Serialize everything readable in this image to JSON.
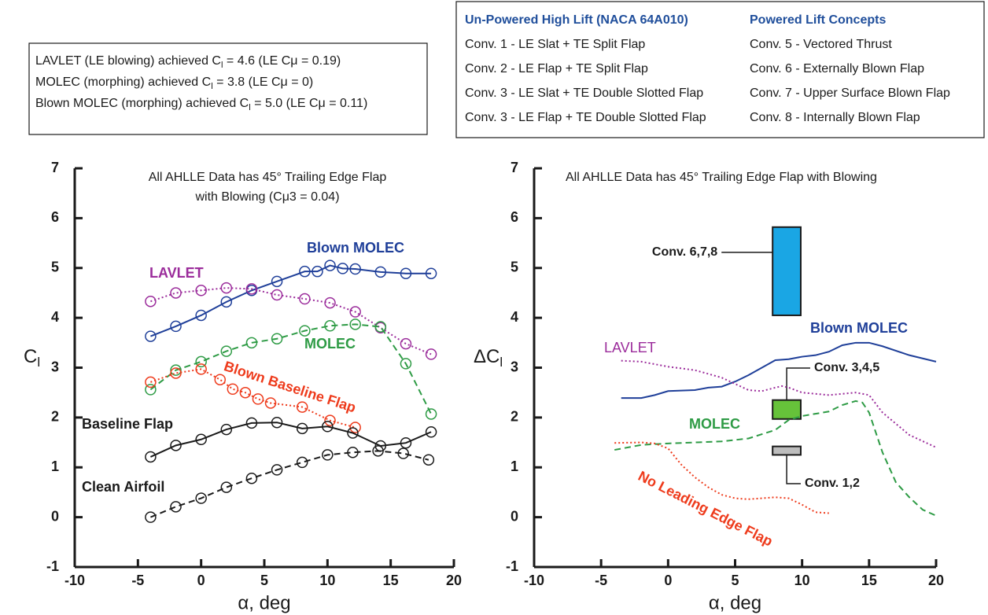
{
  "notes": {
    "lines": [
      [
        "LAVLET (LE blowing) achieved C",
        "l",
        " = 4.6 (LE Cμ = 0.19)"
      ],
      [
        "MOLEC (morphing) achieved C",
        "l",
        " = 3.8 (LE Cμ = 0)"
      ],
      [
        "Blown MOLEC (morphing) achieved C",
        "l",
        " = 5.0 (LE Cμ = 0.11)"
      ]
    ]
  },
  "configurations": {
    "columns": [
      {
        "heading": "Un-Powered High Lift (NACA 64A010)",
        "items": [
          "Conv. 1 - LE Slat + TE Split Flap",
          "Conv. 2 - LE Flap + TE Split Flap",
          "Conv. 3 - LE Slat + TE Double Slotted Flap",
          "Conv. 3 - LE Flap + TE Double Slotted Flap"
        ]
      },
      {
        "heading": "Powered Lift Concepts",
        "items": [
          "Conv. 5 - Vectored Thrust",
          "Conv. 6 - Externally Blown Flap",
          "Conv. 7 - Upper Surface Blown Flap",
          "Conv. 8 - Internally Blown Flap"
        ]
      }
    ]
  },
  "chart_data": [
    {
      "type": "line",
      "markers": true,
      "grid": false,
      "annotation": [
        "All AHLLE Data has 45° Trailing Edge Flap",
        "with Blowing (Cμ3 = 0.04)"
      ],
      "xlabel": "α, deg",
      "ylabel": [
        "C",
        "l"
      ],
      "xlim": [
        -10,
        20
      ],
      "xticks": [
        -10,
        -5,
        0,
        5,
        10,
        15,
        20
      ],
      "ylim": [
        -1,
        7
      ],
      "yticks": [
        -1,
        0,
        1,
        2,
        3,
        4,
        5,
        6,
        7
      ],
      "series": [
        {
          "name": "Blown MOLEC",
          "color": "#1f3f99",
          "dash": "solid",
          "x": [
            -4,
            -2,
            0,
            2,
            4,
            6,
            8.2,
            9.2,
            10.2,
            11.2,
            12.2,
            14.2,
            16.2,
            18.2
          ],
          "values": [
            3.63,
            3.83,
            4.05,
            4.32,
            4.55,
            4.73,
            4.93,
            4.93,
            5.05,
            4.99,
            4.98,
            4.92,
            4.89,
            4.89
          ]
        },
        {
          "name": "LAVLET",
          "color": "#9b2c9b",
          "dash": "dotted",
          "x": [
            -4,
            -2,
            0,
            2,
            4,
            6,
            8.2,
            10.2,
            12.2,
            14.2,
            16.2,
            18.2
          ],
          "values": [
            4.33,
            4.5,
            4.55,
            4.6,
            4.58,
            4.46,
            4.38,
            4.3,
            4.12,
            3.8,
            3.48,
            3.27
          ]
        },
        {
          "name": "MOLEC",
          "color": "#2e9b45",
          "dash": "dashed",
          "x": [
            -4,
            -2,
            0,
            2,
            4,
            6,
            8.2,
            10.2,
            12.2,
            14.2,
            16.2,
            18.2
          ],
          "values": [
            2.56,
            2.95,
            3.12,
            3.33,
            3.5,
            3.58,
            3.74,
            3.84,
            3.87,
            3.82,
            3.08,
            2.07
          ]
        },
        {
          "name": "Blown Baseline Flap",
          "color": "#ee3b1c",
          "dash": "dotted",
          "x": [
            -4,
            -2,
            0,
            1.5,
            2.5,
            3.5,
            4.5,
            5.5,
            8,
            10.2,
            12.2
          ],
          "values": [
            2.71,
            2.89,
            2.97,
            2.76,
            2.57,
            2.5,
            2.37,
            2.29,
            2.21,
            1.94,
            1.8
          ]
        },
        {
          "name": "Baseline Flap",
          "color": "#1a1a1a",
          "dash": "solid",
          "x": [
            -4,
            -2,
            0,
            2,
            4,
            6,
            8,
            10,
            12,
            14.2,
            16.2,
            18.2
          ],
          "values": [
            1.21,
            1.44,
            1.56,
            1.76,
            1.89,
            1.9,
            1.78,
            1.82,
            1.69,
            1.43,
            1.49,
            1.71
          ]
        },
        {
          "name": "Clean Airfoil",
          "color": "#1a1a1a",
          "dash": "dashed",
          "x": [
            -4,
            -2,
            0,
            2,
            4,
            6,
            8,
            10,
            12,
            14,
            16,
            18
          ],
          "values": [
            0,
            0.21,
            0.38,
            0.6,
            0.78,
            0.95,
            1.1,
            1.25,
            1.3,
            1.33,
            1.28,
            1.15
          ]
        }
      ]
    },
    {
      "type": "line",
      "markers": false,
      "grid": false,
      "annotation": [
        "All AHLLE Data has 45° Trailing Edge Flap with Blowing"
      ],
      "xlabel": "α, deg",
      "ylabel": [
        "ΔC",
        "l"
      ],
      "xlim": [
        -10,
        20
      ],
      "xticks": [
        -10,
        -5,
        0,
        5,
        10,
        15,
        20
      ],
      "ylim": [
        -1,
        7
      ],
      "yticks": [
        -1,
        0,
        1,
        2,
        3,
        4,
        5,
        6,
        7
      ],
      "series": [
        {
          "name": "Blown MOLEC",
          "color": "#1f3f99",
          "dash": "solid",
          "x": [
            -3.5,
            -2,
            -1,
            0,
            2,
            3,
            4,
            5,
            6,
            7,
            8,
            9,
            10,
            11,
            12,
            13,
            14,
            15,
            16,
            18,
            20
          ],
          "values": [
            2.39,
            2.39,
            2.45,
            2.53,
            2.55,
            2.6,
            2.62,
            2.72,
            2.85,
            3.0,
            3.15,
            3.17,
            3.22,
            3.25,
            3.32,
            3.45,
            3.5,
            3.5,
            3.43,
            3.25,
            3.12
          ]
        },
        {
          "name": "LAVLET",
          "color": "#9b2c9b",
          "dash": "dotted",
          "x": [
            -3.5,
            -2,
            0,
            2,
            4,
            6,
            7,
            8,
            8.5,
            9,
            10,
            12,
            14,
            15,
            16,
            18,
            20
          ],
          "values": [
            3.14,
            3.12,
            3.02,
            2.95,
            2.8,
            2.55,
            2.53,
            2.6,
            2.63,
            2.6,
            2.5,
            2.45,
            2.5,
            2.45,
            2.1,
            1.65,
            1.4
          ]
        },
        {
          "name": "MOLEC",
          "color": "#2e9b45",
          "dash": "dashed",
          "x": [
            -4,
            -2,
            0,
            4,
            6,
            8,
            9,
            10,
            12,
            13,
            14,
            14.5,
            15,
            16,
            17,
            18,
            19,
            20
          ],
          "values": [
            1.35,
            1.45,
            1.48,
            1.52,
            1.58,
            1.75,
            1.95,
            2.03,
            2.12,
            2.25,
            2.33,
            2.3,
            2.1,
            1.3,
            0.7,
            0.4,
            0.15,
            0.03
          ]
        },
        {
          "name": "No Leading Edge Flap",
          "color": "#ee3b1c",
          "dash": "dotted",
          "x": [
            -4,
            -2,
            -1,
            0,
            1,
            2,
            3,
            4,
            5,
            6,
            7,
            8,
            9,
            10,
            11,
            12
          ],
          "values": [
            1.49,
            1.5,
            1.48,
            1.38,
            1.05,
            0.8,
            0.6,
            0.45,
            0.38,
            0.36,
            0.38,
            0.4,
            0.38,
            0.25,
            0.1,
            0.08
          ]
        }
      ],
      "ranges": [
        {
          "name": "Conv. 6,7,8",
          "color": "#1aa6e4",
          "x": [
            7.8,
            9.9
          ],
          "y": [
            4.05,
            5.82
          ]
        },
        {
          "name": "Conv. 3,4,5",
          "color": "#66c23a",
          "x": [
            7.8,
            9.9
          ],
          "y": [
            1.97,
            2.35
          ]
        },
        {
          "name": "Conv. 1,2",
          "color": "#bdbdbd",
          "x": [
            7.8,
            9.9
          ],
          "y": [
            1.25,
            1.42
          ]
        }
      ]
    }
  ]
}
